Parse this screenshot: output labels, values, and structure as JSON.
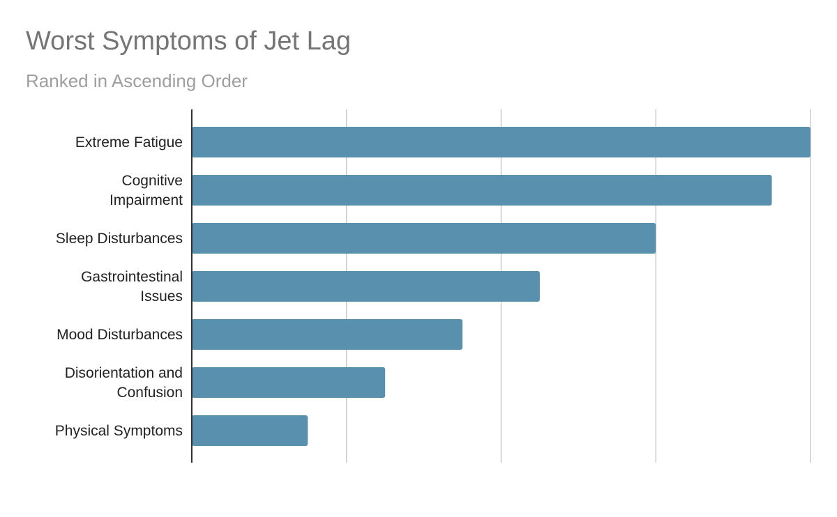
{
  "chart_data": {
    "type": "bar",
    "orientation": "horizontal",
    "title": "Worst Symptoms of Jet Lag",
    "subtitle": "Ranked in Ascending Order",
    "categories": [
      [
        "Extreme Fatigue"
      ],
      [
        "Cognitive",
        "Impairment"
      ],
      [
        "Sleep Disturbances"
      ],
      [
        "Gastrointestinal",
        "Issues"
      ],
      [
        "Mood Disturbances"
      ],
      [
        "Disorientation and",
        "Confusion"
      ],
      [
        "Physical Symptoms"
      ]
    ],
    "values": [
      8,
      7.5,
      6,
      4.5,
      3.5,
      2.5,
      1.5
    ],
    "xlim": [
      0,
      8
    ],
    "x_gridlines": [
      0,
      2,
      4,
      6,
      8
    ],
    "x_tick_labels_shown": false,
    "grid": true,
    "legend": "none",
    "bar_color": "#5990ae",
    "grid_color": "#cccccc",
    "axis_color": "#333333"
  }
}
